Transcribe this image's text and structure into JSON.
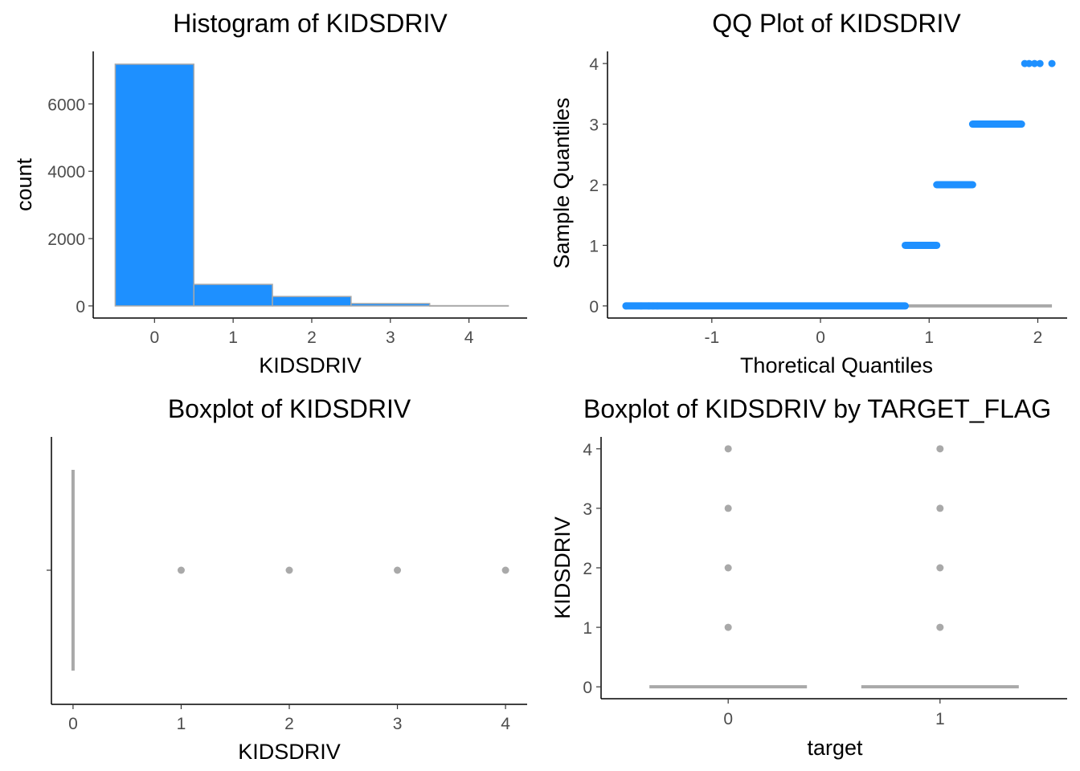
{
  "colors": {
    "fill": "#1E90FF",
    "grey": "#A9A9A9",
    "axis": "#000000",
    "tick_text": "#4d4d4d"
  },
  "chart_data": [
    {
      "type": "bar",
      "title": "Histogram of KIDSDRIV",
      "xlabel": "KIDSDRIV",
      "ylabel": "count",
      "categories": [
        "0",
        "1",
        "2",
        "3",
        "4"
      ],
      "values": [
        7180,
        640,
        280,
        70,
        8
      ],
      "xticks": [
        "0",
        "1",
        "2",
        "3",
        "4"
      ],
      "yticks": [
        "0",
        "2000",
        "4000",
        "6000"
      ],
      "xlim": [
        -0.78,
        4.74
      ],
      "ylim": [
        -360,
        7560
      ],
      "grid": false
    },
    {
      "type": "scatter",
      "title": "QQ Plot of KIDSDRIV",
      "xlabel": "Thoretical Quantiles",
      "ylabel": "Sample Quantiles",
      "xticks": [
        "-1",
        "0",
        "1",
        "2"
      ],
      "yticks": [
        "0",
        "1",
        "2",
        "3",
        "4"
      ],
      "xlim": [
        -1.96,
        2.27
      ],
      "ylim": [
        -0.2,
        4.2
      ],
      "series": [
        {
          "segments": [
            {
              "y": 0,
              "x_from": -1.79,
              "x_to": 0.78
            },
            {
              "y": 1,
              "x_from": 0.78,
              "x_to": 1.07
            },
            {
              "y": 2,
              "x_from": 1.07,
              "x_to": 1.4
            },
            {
              "y": 3,
              "x_from": 1.4,
              "x_to": 1.85
            }
          ],
          "points": [
            {
              "x": -1.79,
              "y": 0
            },
            {
              "x": -1.65,
              "y": 0
            },
            {
              "x": -1.58,
              "y": 0
            },
            {
              "x": -1.54,
              "y": 0
            },
            {
              "x": -1.5,
              "y": 0
            },
            {
              "x": 1.88,
              "y": 4
            },
            {
              "x": 1.92,
              "y": 4
            },
            {
              "x": 1.97,
              "y": 4
            },
            {
              "x": 2.02,
              "y": 4
            },
            {
              "x": 2.13,
              "y": 4
            }
          ]
        }
      ],
      "reference_line": {
        "y": 0,
        "x_from": -1.79,
        "x_to": 2.13
      },
      "grid": false
    },
    {
      "type": "boxplot",
      "title": "Boxplot of KIDSDRIV",
      "xlabel": "KIDSDRIV",
      "ylabel": "",
      "xticks": [
        "0",
        "1",
        "2",
        "3",
        "4"
      ],
      "xlim": [
        -0.2,
        4.2
      ],
      "box": {
        "median": 0,
        "q1": 0,
        "q3": 0,
        "whisker_low": 0,
        "whisker_high": 0
      },
      "outliers": [
        1,
        2,
        3,
        4
      ],
      "grid": false
    },
    {
      "type": "boxplot",
      "title": "Boxplot of KIDSDRIV by TARGET_FLAG",
      "xlabel": "target",
      "ylabel": "KIDSDRIV",
      "categories": [
        "0",
        "1"
      ],
      "yticks": [
        "0",
        "1",
        "2",
        "3",
        "4"
      ],
      "ylim": [
        -0.2,
        4.2
      ],
      "groups": [
        {
          "category": "0",
          "median": 0,
          "q1": 0,
          "q3": 0,
          "outliers": [
            1,
            2,
            3,
            4
          ]
        },
        {
          "category": "1",
          "median": 0,
          "q1": 0,
          "q3": 0,
          "outliers": [
            1,
            2,
            3,
            4
          ]
        }
      ],
      "grid": false
    }
  ]
}
